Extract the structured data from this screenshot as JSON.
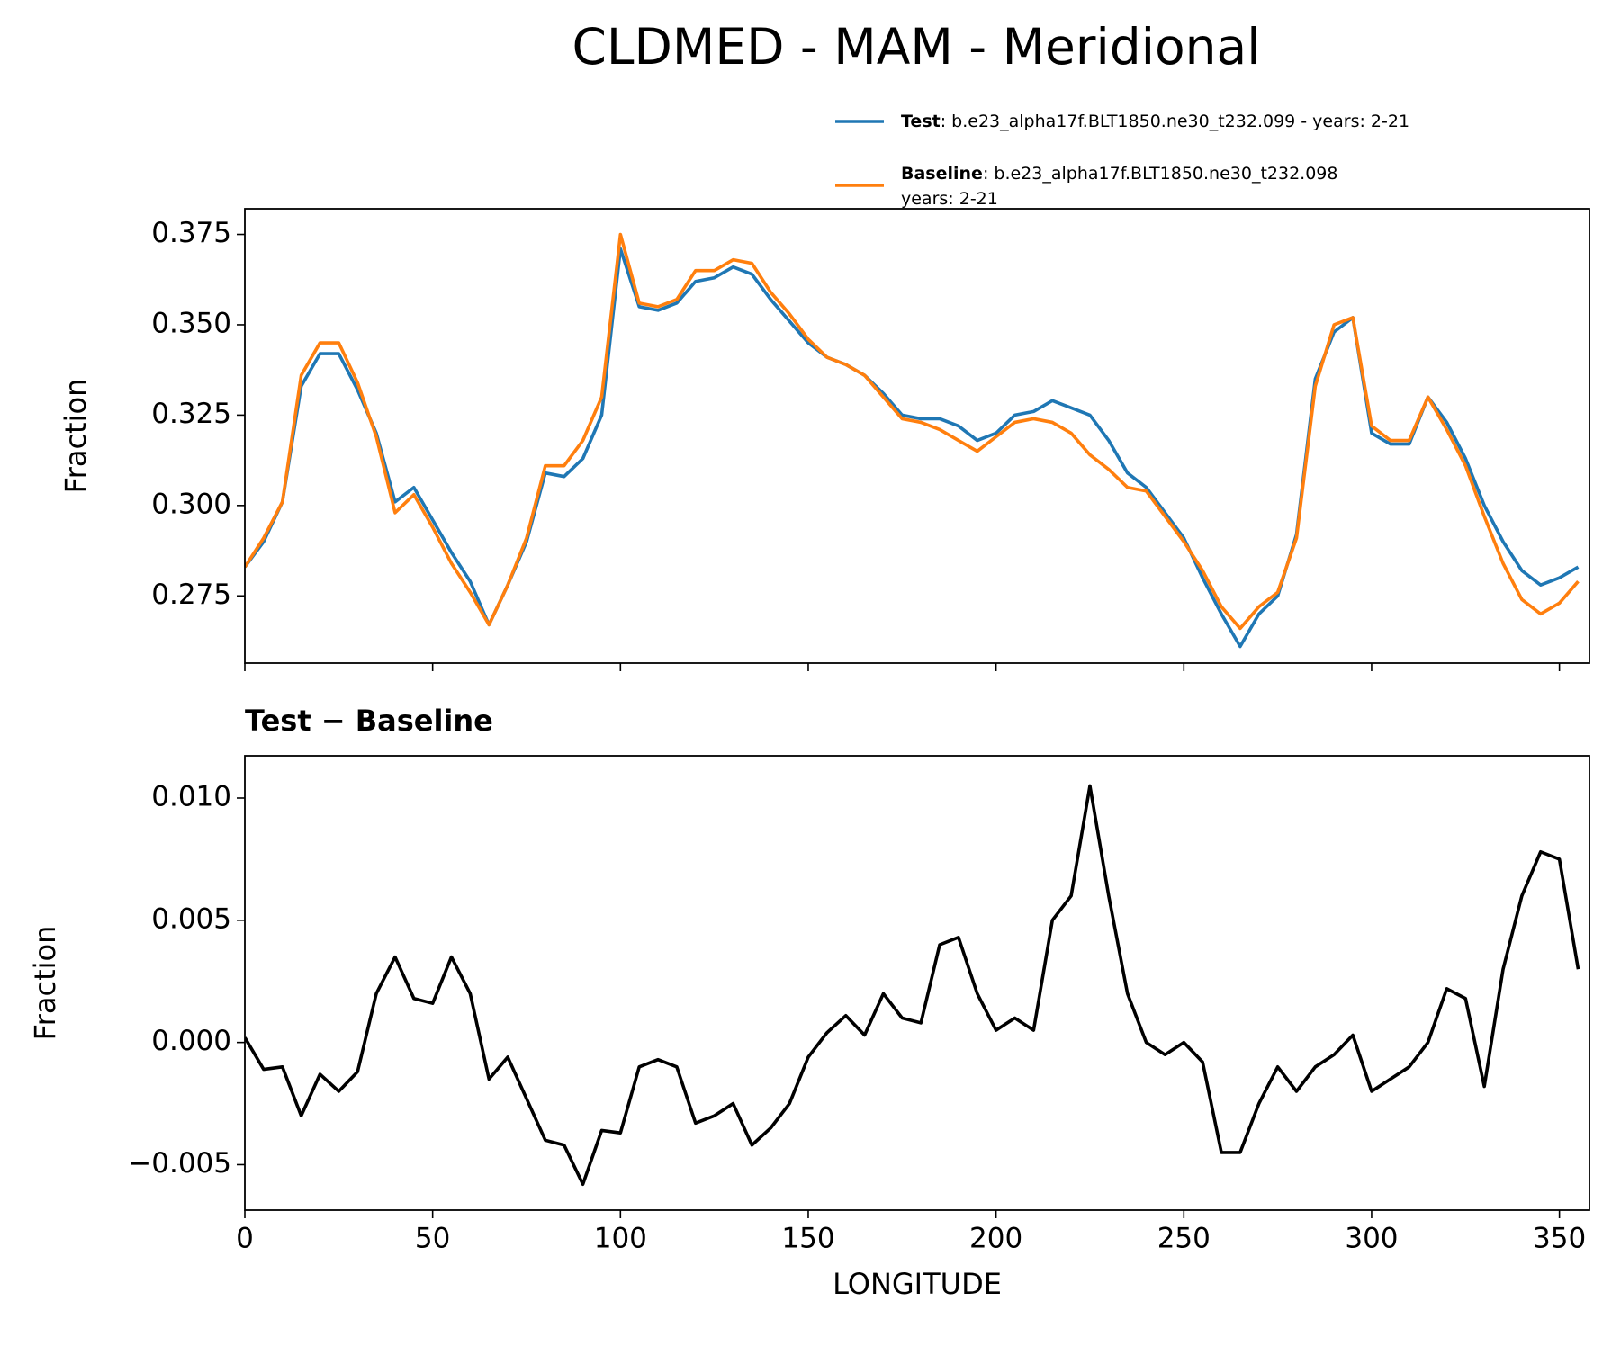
{
  "chart_data": [
    {
      "type": "line",
      "title": "CLDMED - MAM - Meridional",
      "ylabel": "Fraction",
      "x": [
        0,
        5,
        10,
        15,
        20,
        25,
        30,
        35,
        40,
        45,
        50,
        55,
        60,
        65,
        70,
        75,
        80,
        85,
        90,
        95,
        100,
        105,
        110,
        115,
        120,
        125,
        130,
        135,
        140,
        145,
        150,
        155,
        160,
        165,
        170,
        175,
        180,
        185,
        190,
        195,
        200,
        205,
        210,
        215,
        220,
        225,
        230,
        235,
        240,
        245,
        250,
        255,
        260,
        265,
        270,
        275,
        280,
        285,
        290,
        295,
        300,
        305,
        310,
        315,
        320,
        325,
        330,
        335,
        340,
        345,
        350,
        355
      ],
      "series": [
        {
          "name": "Test",
          "description": [
            ": b.e23_alpha17f.BLT1850.ne30_t232.099 - years: 2-21"
          ],
          "color": "#1f77b4",
          "values": [
            0.283,
            0.29,
            0.301,
            0.333,
            0.342,
            0.342,
            0.332,
            0.32,
            0.301,
            0.305,
            0.296,
            0.287,
            0.279,
            0.267,
            0.278,
            0.29,
            0.309,
            0.308,
            0.313,
            0.325,
            0.371,
            0.355,
            0.354,
            0.356,
            0.362,
            0.363,
            0.366,
            0.364,
            0.357,
            0.351,
            0.345,
            0.341,
            0.339,
            0.336,
            0.331,
            0.325,
            0.324,
            0.324,
            0.322,
            0.318,
            0.32,
            0.325,
            0.326,
            0.329,
            0.327,
            0.325,
            0.318,
            0.309,
            0.305,
            0.298,
            0.291,
            0.28,
            0.27,
            0.261,
            0.27,
            0.275,
            0.292,
            0.335,
            0.348,
            0.352,
            0.32,
            0.317,
            0.317,
            0.33,
            0.323,
            0.313,
            0.3,
            0.29,
            0.282,
            0.278,
            0.28,
            0.283
          ]
        },
        {
          "name": "Baseline",
          "description": [
            ": b.e23_alpha17f.BLT1850.ne30_t232.098",
            "years: 2-21"
          ],
          "color": "#ff7f0e",
          "values": [
            0.283,
            0.291,
            0.301,
            0.336,
            0.345,
            0.345,
            0.334,
            0.319,
            0.298,
            0.303,
            0.294,
            0.284,
            0.276,
            0.267,
            0.278,
            0.291,
            0.311,
            0.311,
            0.318,
            0.33,
            0.375,
            0.356,
            0.355,
            0.357,
            0.365,
            0.365,
            0.368,
            0.367,
            0.359,
            0.353,
            0.346,
            0.341,
            0.339,
            0.336,
            0.33,
            0.324,
            0.323,
            0.321,
            0.318,
            0.315,
            0.319,
            0.323,
            0.324,
            0.323,
            0.32,
            0.314,
            0.31,
            0.305,
            0.304,
            0.297,
            0.29,
            0.282,
            0.272,
            0.266,
            0.272,
            0.276,
            0.291,
            0.333,
            0.35,
            0.352,
            0.322,
            0.318,
            0.318,
            0.33,
            0.321,
            0.311,
            0.297,
            0.284,
            0.274,
            0.27,
            0.273,
            0.279
          ]
        }
      ],
      "xlim": [
        0,
        358
      ],
      "xticks": [
        0,
        50,
        100,
        150,
        200,
        250,
        300,
        350
      ],
      "ylim": [
        0.2564,
        0.3821
      ],
      "yticks": [
        0.275,
        {
          "value": 0.3,
          "label": "0.300"
        },
        0.325,
        {
          "value": 0.35,
          "label": "0.350"
        },
        0.375
      ]
    },
    {
      "type": "line",
      "title": "Test − Baseline",
      "ylabel": "Fraction",
      "xlabel": "LONGITUDE",
      "x": [
        0,
        5,
        10,
        15,
        20,
        25,
        30,
        35,
        40,
        45,
        50,
        55,
        60,
        65,
        70,
        75,
        80,
        85,
        90,
        95,
        100,
        105,
        110,
        115,
        120,
        125,
        130,
        135,
        140,
        145,
        150,
        155,
        160,
        165,
        170,
        175,
        180,
        185,
        190,
        195,
        200,
        205,
        210,
        215,
        220,
        225,
        230,
        235,
        240,
        245,
        250,
        255,
        260,
        265,
        270,
        275,
        280,
        285,
        290,
        295,
        300,
        305,
        310,
        315,
        320,
        325,
        330,
        335,
        340,
        345,
        350,
        355
      ],
      "series": [
        {
          "color": "#000000",
          "values": [
            0.0002,
            -0.0011,
            -0.001,
            -0.003,
            -0.0013,
            -0.002,
            -0.0012,
            0.002,
            0.0035,
            0.0018,
            0.0016,
            0.0035,
            0.002,
            -0.0015,
            -0.0006,
            -0.0023,
            -0.004,
            -0.0042,
            -0.0058,
            -0.0036,
            -0.0037,
            -0.001,
            -0.0007,
            -0.001,
            -0.0033,
            -0.003,
            -0.0025,
            -0.0042,
            -0.0035,
            -0.0025,
            -0.0006,
            0.0004,
            0.0011,
            0.0003,
            0.002,
            0.001,
            0.0008,
            0.004,
            0.0043,
            0.002,
            0.0005,
            0.001,
            0.0005,
            0.005,
            0.006,
            0.0105,
            0.006,
            0.002,
            0.0,
            -0.0005,
            0.0,
            -0.0008,
            -0.0045,
            -0.0045,
            -0.0025,
            -0.001,
            -0.002,
            -0.001,
            -0.0005,
            0.0003,
            -0.002,
            -0.0015,
            -0.001,
            0.0,
            0.0022,
            0.0018,
            -0.0018,
            0.003,
            0.006,
            0.0078,
            0.0075,
            0.003
          ]
        }
      ],
      "xlim": [
        0,
        358
      ],
      "xticks": [
        0,
        50,
        100,
        150,
        200,
        250,
        300,
        350
      ],
      "ylim": [
        -0.00686,
        0.01173
      ],
      "yticks": [
        {
          "value": -0.005,
          "label": "−0.005"
        },
        {
          "value": 0,
          "label": "0.000"
        },
        0.005,
        {
          "value": 0.01,
          "label": "0.010"
        }
      ]
    }
  ]
}
